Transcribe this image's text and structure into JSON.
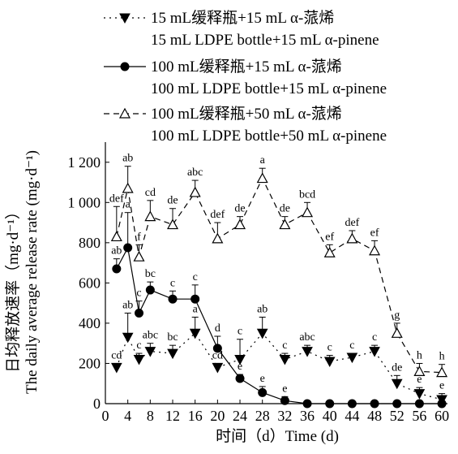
{
  "chart_data": {
    "type": "line",
    "xlabel": "时间（d）Time (d)",
    "ylabel_cn": "日均释放速率（mg·d⁻¹）",
    "ylabel_en": "The daily average release rate (mg·d⁻¹)",
    "xlim": [
      0,
      61
    ],
    "ylim": [
      0,
      1300
    ],
    "xticks": [
      0,
      4,
      8,
      12,
      16,
      20,
      24,
      28,
      32,
      36,
      40,
      44,
      48,
      52,
      56,
      60
    ],
    "xtick_labels": [
      "0",
      "4",
      "8",
      "12",
      "16",
      "20",
      "24",
      "28",
      "32",
      "36",
      "40",
      "44",
      "48",
      "52",
      "56",
      "60"
    ],
    "yticks": [
      0,
      200,
      400,
      600,
      800,
      1000,
      1200
    ],
    "ytick_labels": [
      "0",
      "200",
      "400",
      "600",
      "800",
      "1 000",
      "1 200"
    ],
    "grid": false,
    "legend_position": "top",
    "series": [
      {
        "name_cn": "15 mL缓释瓶+15 mL α-蒎烯",
        "name_en": "15 mL LDPE bottle+15 mL α-pinene",
        "marker": "down-triangle-filled",
        "line_style": "dotted",
        "color": "#000000",
        "x": [
          2,
          4,
          6,
          8,
          12,
          16,
          20,
          24,
          28,
          32,
          36,
          40,
          44,
          48,
          52,
          56,
          60
        ],
        "values": [
          180,
          330,
          220,
          260,
          250,
          350,
          180,
          220,
          350,
          220,
          260,
          210,
          230,
          260,
          100,
          50,
          20
        ],
        "error": [
          20,
          120,
          30,
          40,
          40,
          80,
          20,
          100,
          80,
          30,
          30,
          30,
          20,
          30,
          40,
          30,
          30
        ],
        "sig_labels": [
          "cd",
          "ab",
          "c",
          "abc",
          "bc",
          "a",
          "cd",
          "c",
          "ab",
          "c",
          "abc",
          "c",
          "c",
          "c",
          "de",
          "e",
          "e"
        ]
      },
      {
        "name_cn": "100 mL缓释瓶+15 mL α-蒎烯",
        "name_en": "100 mL LDPE bottle+15 mL α-pinene",
        "marker": "circle-filled",
        "line_style": "solid",
        "color": "#000000",
        "x": [
          2,
          4,
          6,
          8,
          12,
          16,
          20,
          24,
          28,
          32,
          36,
          40,
          44,
          48,
          52,
          56,
          60
        ],
        "values": [
          670,
          775,
          450,
          565,
          520,
          520,
          275,
          125,
          55,
          15,
          0,
          0,
          0,
          0,
          0,
          0,
          0
        ],
        "error": [
          50,
          175,
          60,
          40,
          40,
          70,
          60,
          20,
          30,
          20,
          0,
          0,
          0,
          0,
          0,
          0,
          0
        ],
        "sig_labels": [
          "ab",
          "a",
          "c",
          "bc",
          "c",
          "c",
          "d",
          "e",
          "e",
          "e",
          "",
          "",
          "",
          "",
          "",
          "",
          ""
        ]
      },
      {
        "name_cn": "100 mL缓释瓶+50 mL α-蒎烯",
        "name_en": "100 mL LDPE bottle+50 mL α-pinene",
        "marker": "up-triangle-open",
        "line_style": "dashed",
        "color": "#000000",
        "x": [
          2,
          4,
          6,
          8,
          12,
          16,
          20,
          24,
          28,
          32,
          36,
          40,
          44,
          48,
          52,
          56,
          60
        ],
        "values": [
          830,
          1070,
          730,
          930,
          890,
          1050,
          820,
          890,
          1120,
          890,
          950,
          750,
          820,
          760,
          350,
          160,
          155
        ],
        "error": [
          150,
          110,
          60,
          80,
          80,
          60,
          80,
          40,
          50,
          40,
          50,
          40,
          40,
          50,
          50,
          40,
          40
        ],
        "sig_labels": [
          "def",
          "ab",
          "f",
          "cd",
          "de",
          "abc",
          "def",
          "de",
          "a",
          "de",
          "bcd",
          "ef",
          "def",
          "ef",
          "g",
          "h",
          "h"
        ]
      }
    ]
  }
}
